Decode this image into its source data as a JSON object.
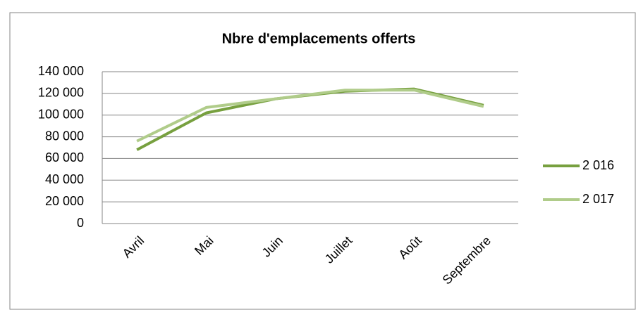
{
  "chart_data": {
    "type": "line",
    "title": "Nbre d'emplacements offerts",
    "categories": [
      "Avril",
      "Mai",
      "Juin",
      "Juillet",
      "Août",
      "Septembre"
    ],
    "series": [
      {
        "name": "2 016",
        "color": "#77a03f",
        "values": [
          68000,
          102000,
          115000,
          122000,
          124000,
          109000
        ]
      },
      {
        "name": "2 017",
        "color": "#b0cc8a",
        "values": [
          76000,
          107000,
          115000,
          123000,
          123000,
          108000
        ]
      }
    ],
    "ylim": [
      0,
      140000
    ],
    "yticks": [
      0,
      {
        "value": 20000,
        "label": "20 000"
      },
      {
        "value": 40000,
        "label": "40 000"
      },
      {
        "value": 60000,
        "label": "60 000"
      },
      {
        "value": 80000,
        "label": "80 000"
      },
      {
        "value": 100000,
        "label": "100 000"
      },
      {
        "value": 120000,
        "label": "120 000"
      },
      {
        "value": 140000,
        "label": "140 000"
      }
    ],
    "grid": true,
    "legend": "right"
  }
}
